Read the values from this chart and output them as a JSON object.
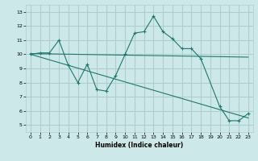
{
  "xlabel": "Humidex (Indice chaleur)",
  "ylabel": "",
  "xlim": [
    -0.5,
    23.5
  ],
  "ylim": [
    4.5,
    13.5
  ],
  "yticks": [
    5,
    6,
    7,
    8,
    9,
    10,
    11,
    12,
    13
  ],
  "xticks": [
    0,
    1,
    2,
    3,
    4,
    5,
    6,
    7,
    8,
    9,
    10,
    11,
    12,
    13,
    14,
    15,
    16,
    17,
    18,
    19,
    20,
    21,
    22,
    23
  ],
  "bg_color": "#cce8e8",
  "grid_color": "#b0cccc",
  "line_color": "#1a7a6e",
  "line1_x": [
    0,
    1,
    2,
    3,
    4,
    5,
    6,
    7,
    8,
    9,
    10,
    11,
    12,
    13,
    14,
    15,
    16,
    17,
    18,
    20,
    21,
    22,
    23
  ],
  "line1_y": [
    10.0,
    10.1,
    10.1,
    11.0,
    9.2,
    8.0,
    9.3,
    7.5,
    7.4,
    8.5,
    10.0,
    11.5,
    11.6,
    12.7,
    11.6,
    11.1,
    10.4,
    10.4,
    9.7,
    6.3,
    5.3,
    5.3,
    5.8
  ],
  "line2_x": [
    0,
    23
  ],
  "line2_y": [
    10.05,
    9.8
  ],
  "line3_x": [
    0,
    23
  ],
  "line3_y": [
    10.0,
    5.5
  ]
}
